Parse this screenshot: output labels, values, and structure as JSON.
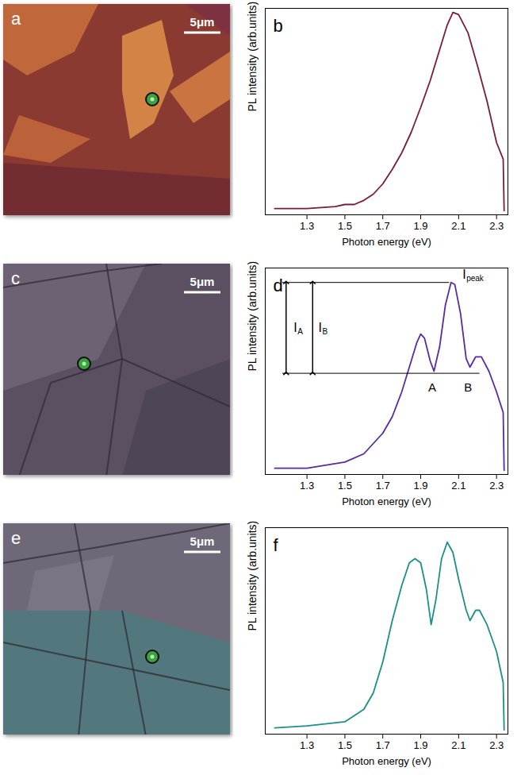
{
  "chart_data": [
    {
      "type": "line",
      "panel_label": "b",
      "x_label": "Photon energy (eV)",
      "y_label": "PL intensity (arb.units)",
      "xlim": [
        1.08,
        2.36
      ],
      "xticks": [
        1.3,
        1.5,
        1.7,
        1.9,
        2.1,
        2.3
      ],
      "ylim": [
        0,
        1
      ],
      "tick_labels": "x",
      "series": [
        {
          "color": "#7a1c40",
          "x": [
            1.13,
            1.3,
            1.45,
            1.5,
            1.55,
            1.6,
            1.65,
            1.7,
            1.75,
            1.8,
            1.85,
            1.9,
            1.95,
            2.0,
            2.04,
            2.07,
            2.1,
            2.15,
            2.2,
            2.25,
            2.3,
            2.335,
            2.34
          ],
          "values": [
            0.03,
            0.03,
            0.04,
            0.05,
            0.05,
            0.07,
            0.1,
            0.15,
            0.22,
            0.3,
            0.4,
            0.52,
            0.65,
            0.8,
            0.92,
            0.98,
            0.97,
            0.88,
            0.72,
            0.55,
            0.35,
            0.27,
            0.02
          ]
        }
      ]
    },
    {
      "type": "line",
      "panel_label": "d",
      "x_label": "Photon energy (eV)",
      "y_label": "PL intensity (arb.units)",
      "xlim": [
        1.08,
        2.36
      ],
      "xticks": [
        1.3,
        1.5,
        1.7,
        1.9,
        2.1,
        2.3
      ],
      "ylim": [
        0,
        1
      ],
      "tick_labels": "x",
      "series": [
        {
          "color": "#5a2aa0",
          "x": [
            1.13,
            1.3,
            1.5,
            1.6,
            1.7,
            1.75,
            1.8,
            1.85,
            1.88,
            1.9,
            1.92,
            1.95,
            1.97,
            2.0,
            2.03,
            2.06,
            2.08,
            2.11,
            2.14,
            2.16,
            2.19,
            2.22,
            2.26,
            2.3,
            2.335,
            2.34
          ],
          "values": [
            0.03,
            0.03,
            0.06,
            0.1,
            0.2,
            0.28,
            0.4,
            0.55,
            0.64,
            0.68,
            0.66,
            0.55,
            0.5,
            0.62,
            0.82,
            0.93,
            0.92,
            0.78,
            0.56,
            0.52,
            0.57,
            0.57,
            0.5,
            0.4,
            0.3,
            0.02
          ]
        }
      ],
      "annotations": {
        "levels": [
          {
            "y": 0.93,
            "x1": 1.17,
            "x2": 2.05
          },
          {
            "y": 0.49,
            "x1": 1.17,
            "x2": 2.21
          }
        ],
        "arrows": [
          {
            "x": 1.19,
            "y1": 0.49,
            "y2": 0.93,
            "label_x": 1.23,
            "text": "I",
            "subscript": "A"
          },
          {
            "x": 1.33,
            "y1": 0.49,
            "y2": 0.93,
            "label_x": 1.36,
            "text": "I",
            "subscript": "B"
          }
        ],
        "peak_label": {
          "x": 2.12,
          "y": 0.93,
          "text": "I",
          "subscript": "peak"
        },
        "points": [
          {
            "x": 1.96,
            "y": 0.42,
            "text": "A"
          },
          {
            "x": 2.15,
            "y": 0.42,
            "text": "B"
          }
        ]
      }
    },
    {
      "type": "line",
      "panel_label": "f",
      "x_label": "Photon energy (eV)",
      "y_label": "PL intensity (arb.units)",
      "xlim": [
        1.08,
        2.36
      ],
      "xticks": [
        1.3,
        1.5,
        1.7,
        1.9,
        2.1,
        2.3
      ],
      "ylim": [
        0,
        1
      ],
      "tick_labels": "x",
      "series": [
        {
          "color": "#1a9088",
          "x": [
            1.13,
            1.3,
            1.5,
            1.6,
            1.65,
            1.7,
            1.75,
            1.8,
            1.84,
            1.87,
            1.9,
            1.93,
            1.955,
            1.98,
            2.01,
            2.04,
            2.07,
            2.1,
            2.14,
            2.16,
            2.19,
            2.21,
            2.25,
            2.3,
            2.335,
            2.34
          ],
          "values": [
            0.03,
            0.04,
            0.06,
            0.12,
            0.2,
            0.35,
            0.55,
            0.72,
            0.83,
            0.85,
            0.83,
            0.7,
            0.53,
            0.65,
            0.85,
            0.93,
            0.88,
            0.75,
            0.6,
            0.55,
            0.6,
            0.6,
            0.53,
            0.4,
            0.25,
            0.02
          ]
        }
      ]
    }
  ],
  "images": [
    {
      "panel_label": "a",
      "scale_bar": "5μm"
    },
    {
      "panel_label": "c",
      "scale_bar": "5μm"
    },
    {
      "panel_label": "e",
      "scale_bar": "5μm"
    }
  ]
}
